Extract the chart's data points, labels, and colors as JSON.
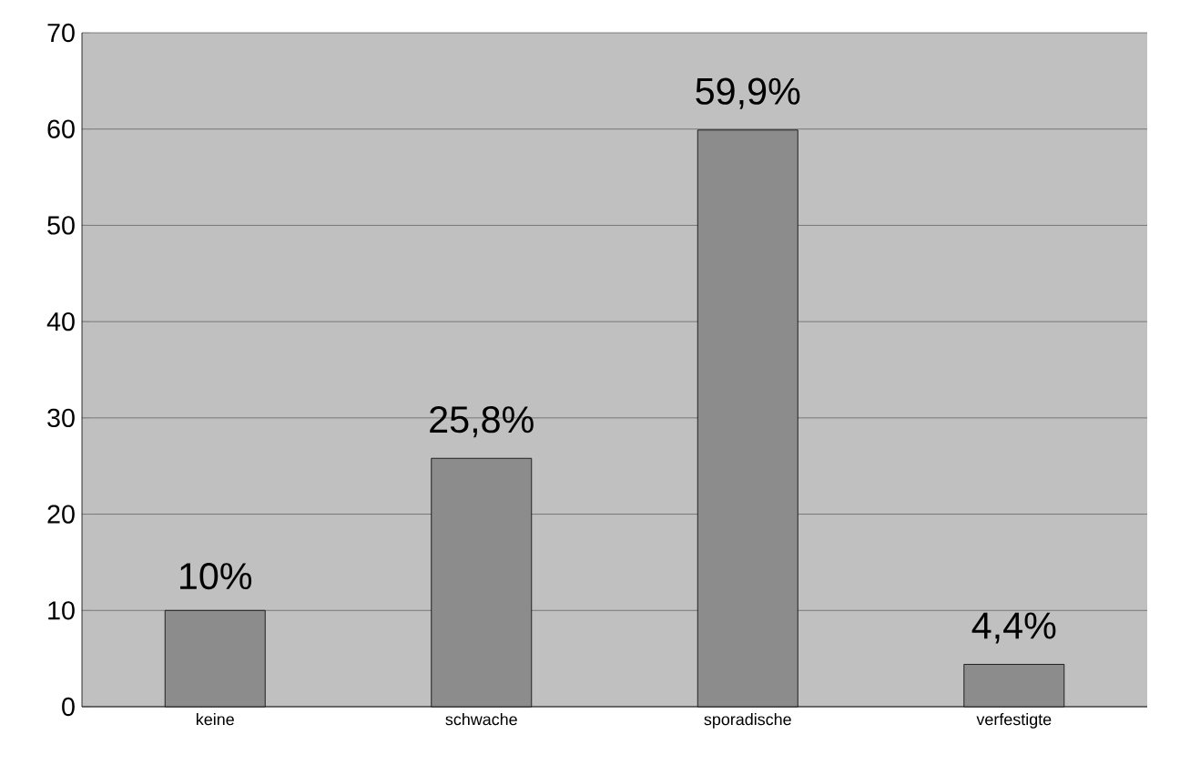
{
  "chart_data": {
    "type": "bar",
    "categories": [
      "keine",
      "schwache",
      "sporadische",
      "verfestigte"
    ],
    "values": [
      10,
      25.8,
      59.9,
      4.4
    ],
    "value_labels": [
      "10%",
      "25,8%",
      "59,9%",
      "4,4%"
    ],
    "color": "#8c8c8c",
    "ylim": [
      0,
      70
    ],
    "yticks": [
      0,
      10,
      20,
      30,
      40,
      50,
      60,
      70
    ],
    "grid": "y"
  }
}
